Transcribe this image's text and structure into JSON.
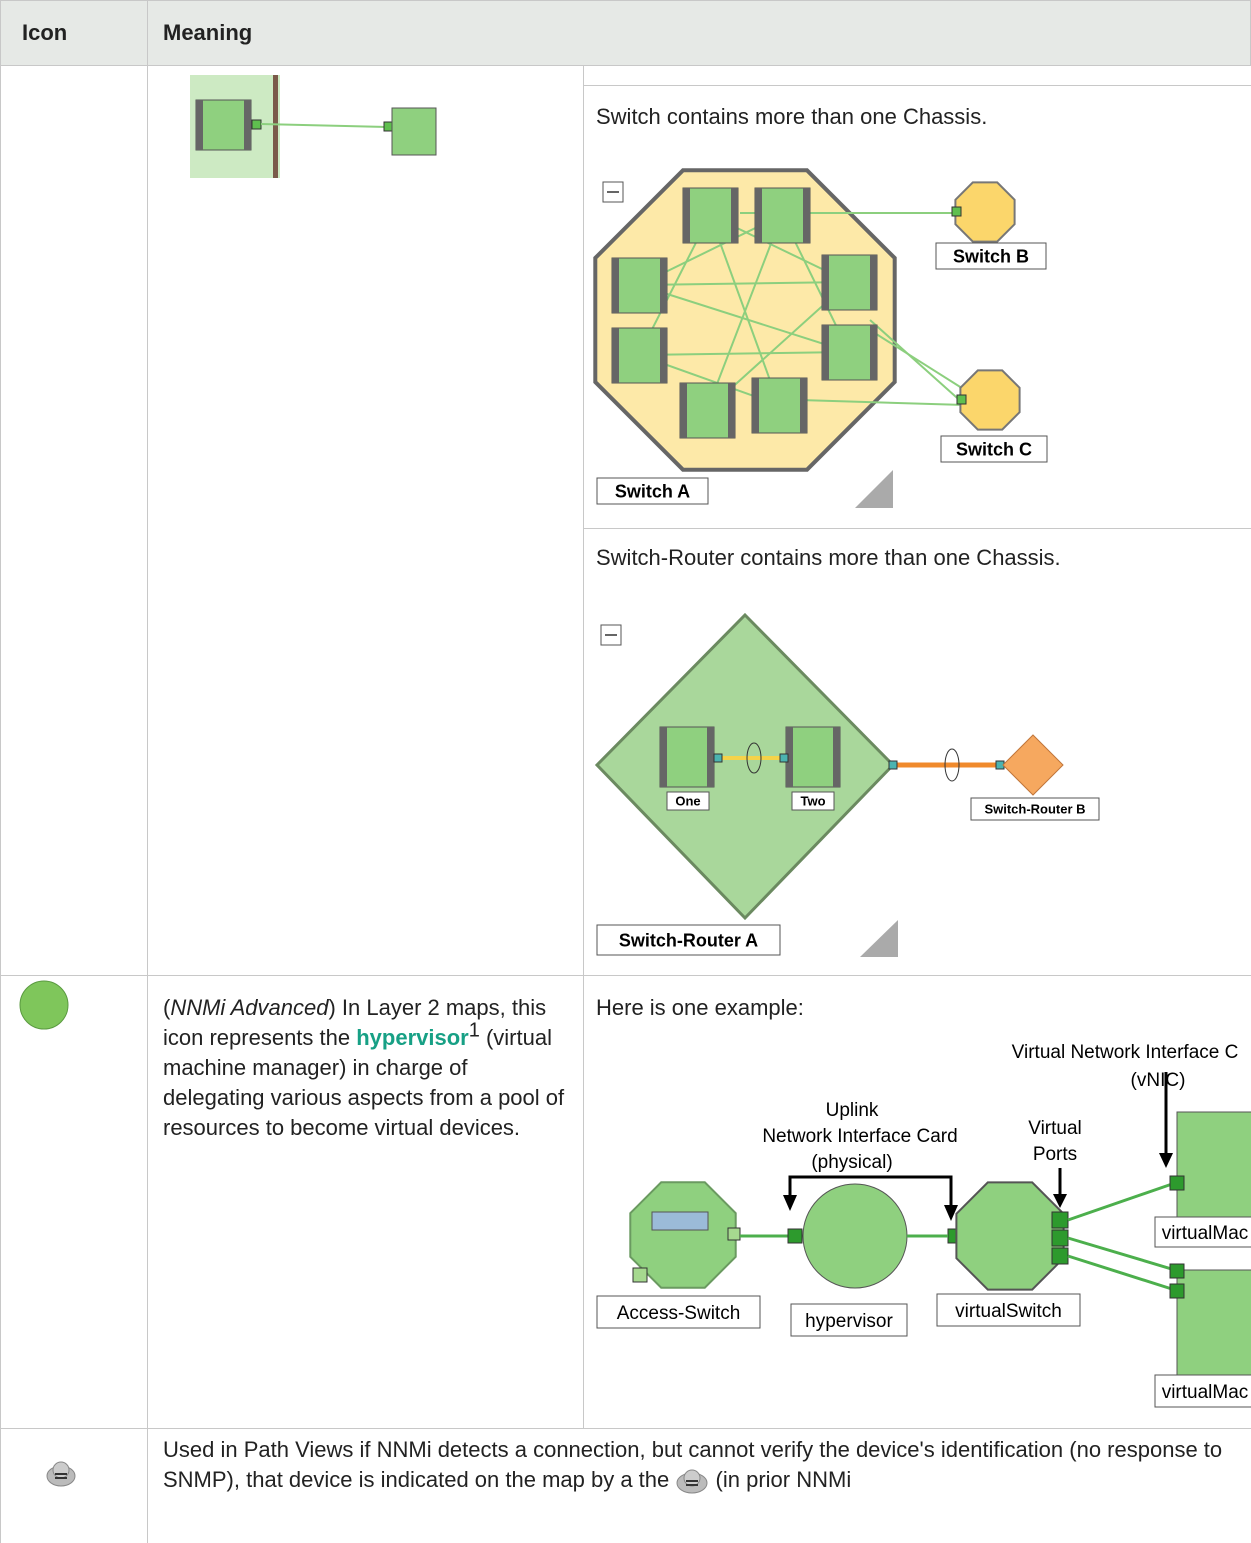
{
  "header": {
    "columns": [
      "Icon",
      "Meaning"
    ]
  },
  "rows": [
    {
      "examples": [
        {
          "caption": "Switch contains more than one Chassis.",
          "labels": [
            "Switch B",
            "Switch C",
            "Switch A"
          ]
        },
        {
          "caption": "Switch-Router contains more than one Chassis.",
          "labels": [
            "One",
            "Two",
            "Switch-Router B",
            "Switch-Router A"
          ]
        }
      ]
    },
    {
      "meaning": [
        "(",
        "NNMi Advanced",
        ") In Layer 2 maps, this icon represents the ",
        "hypervisor",
        "1",
        " (virtual machine manager) in charge of delegating various aspects from a pool of resources to become virtual devices."
      ],
      "example": {
        "caption": "Here is one example:",
        "labels": [
          "Virtual Network Interface C",
          "(vNIC)",
          "Uplink",
          "Network Interface Card",
          "(physical)",
          "Virtual",
          "Ports",
          "virtualMac",
          "Access-Switch",
          "hypervisor",
          "virtualSwitch",
          "virtualMac"
        ]
      }
    },
    {
      "meaning": [
        "Used in Path Views if NNMi detects a connection, but cannot verify the device's identification (no response to SNMP), that device is indicated on the map by a the",
        "(in prior NNMi"
      ]
    }
  ]
}
